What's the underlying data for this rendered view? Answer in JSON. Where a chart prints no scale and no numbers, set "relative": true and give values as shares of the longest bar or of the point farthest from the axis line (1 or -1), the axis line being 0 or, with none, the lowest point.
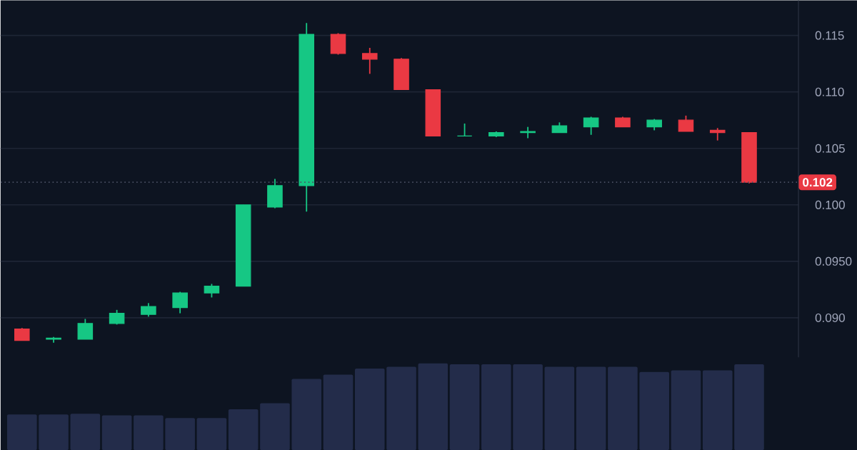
{
  "chart_data": [
    {
      "type": "candlestick",
      "categories": [
        null,
        null,
        null,
        null,
        null,
        null,
        null,
        null,
        null,
        null,
        null,
        null,
        null,
        null,
        null,
        null,
        null,
        null,
        null,
        null,
        null,
        null,
        null,
        null
      ],
      "ohlc": [
        [
          0.089,
          0.0891,
          0.088,
          0.088
        ],
        [
          0.0881,
          0.0883,
          0.0878,
          0.0882
        ],
        [
          0.0881,
          0.0899,
          0.0881,
          0.0895
        ],
        [
          0.0895,
          0.0907,
          0.0894,
          0.0904
        ],
        [
          0.0903,
          0.0913,
          0.0901,
          0.091
        ],
        [
          0.0909,
          0.0923,
          0.0904,
          0.0922
        ],
        [
          0.0922,
          0.093,
          0.0918,
          0.0928
        ],
        [
          0.0928,
          0.1,
          0.0928,
          0.1
        ],
        [
          0.0998,
          0.1023,
          0.0997,
          0.1017
        ],
        [
          0.1017,
          0.1161,
          0.0994,
          0.1151
        ],
        [
          0.1151,
          0.1152,
          0.1133,
          0.1134
        ],
        [
          0.1134,
          0.1139,
          0.1116,
          0.1129
        ],
        [
          0.1129,
          0.113,
          0.1102,
          0.1102
        ],
        [
          0.1102,
          0.1102,
          0.1061,
          0.1061
        ],
        [
          0.1061,
          0.1072,
          0.1061,
          0.1061
        ],
        [
          0.1061,
          0.1065,
          0.106,
          0.1064
        ],
        [
          0.1064,
          0.1069,
          0.1059,
          0.1065
        ],
        [
          0.1064,
          0.1073,
          0.1064,
          0.107
        ],
        [
          0.1069,
          0.1078,
          0.1062,
          0.1077
        ],
        [
          0.1077,
          0.1078,
          0.1069,
          0.1069
        ],
        [
          0.1069,
          0.1076,
          0.1066,
          0.1075
        ],
        [
          0.1075,
          0.1079,
          0.1065,
          0.1065
        ],
        [
          0.1066,
          0.1068,
          0.1057,
          0.1064
        ],
        [
          0.1064,
          0.1064,
          0.1019,
          0.102
        ]
      ],
      "colors": [
        "#ea3943",
        "#16c784",
        "#16c784",
        "#16c784",
        "#16c784",
        "#16c784",
        "#16c784",
        "#16c784",
        "#16c784",
        "#16c784",
        "#ea3943",
        "#ea3943",
        "#ea3943",
        "#ea3943",
        "#16c784",
        "#16c784",
        "#16c784",
        "#16c784",
        "#16c784",
        "#ea3943",
        "#16c784",
        "#ea3943",
        "#ea3943",
        "#ea3943"
      ],
      "ylim": [
        0.0865,
        0.1181
      ],
      "yticks": [
        {
          "value": 0.09,
          "label": "0.090"
        },
        {
          "value": 0.095,
          "label": "0.0950"
        },
        {
          "value": 0.1,
          "label": "0.100"
        },
        0.105,
        {
          "value": 0.11,
          "label": "0.110"
        },
        0.115
      ],
      "grid": "y",
      "tick_labels": "y",
      "ref_lines": [
        {
          "axis": "y",
          "value": 0.102,
          "label": "0.102",
          "color": "#4a5063",
          "line_style": "dotted"
        }
      ]
    },
    {
      "type": "bar",
      "categories": [
        null,
        null,
        null,
        null,
        null,
        null,
        null,
        null,
        null,
        null,
        null,
        null,
        null,
        null,
        null,
        null,
        null,
        null,
        null,
        null,
        null,
        null,
        null,
        null
      ],
      "values": [
        0.41,
        0.41,
        0.42,
        0.4,
        0.4,
        0.37,
        0.37,
        0.47,
        0.54,
        0.82,
        0.87,
        0.94,
        0.96,
        1,
        0.99,
        0.99,
        0.99,
        0.96,
        0.96,
        0.96,
        0.9,
        0.92,
        0.92,
        0.99
      ],
      "color": "#232c4a",
      "relative": true
    }
  ]
}
